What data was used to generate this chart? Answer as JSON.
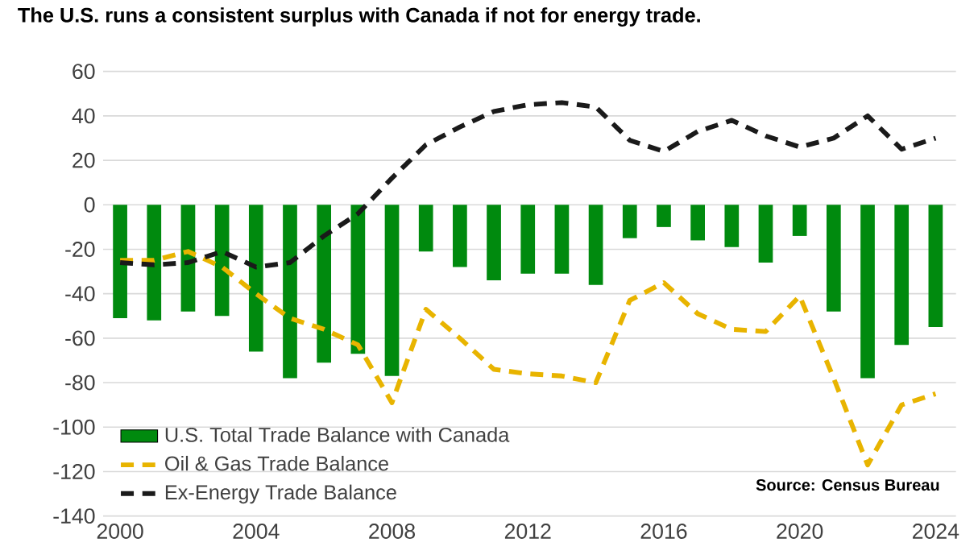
{
  "chart_data": {
    "type": "bar",
    "title": "The U.S. runs a consistent surplus with Canada if not for energy trade.",
    "x": [
      2000,
      2001,
      2002,
      2003,
      2004,
      2005,
      2006,
      2007,
      2008,
      2009,
      2010,
      2011,
      2012,
      2013,
      2014,
      2015,
      2016,
      2017,
      2018,
      2019,
      2020,
      2021,
      2022,
      2023,
      2024
    ],
    "series": [
      {
        "name": "U.S. Total Trade Balance with Canada",
        "color": "#008a0e",
        "values": [
          -51,
          -52,
          -48,
          -50,
          -66,
          -78,
          -71,
          -67,
          -77,
          -21,
          -28,
          -34,
          -31,
          -31,
          -36,
          -15,
          -10,
          -16,
          -19,
          -26,
          -14,
          -48,
          -78,
          -63,
          -55
        ]
      },
      {
        "name": "Oil & Gas Trade Balance",
        "type": "line",
        "line_style": "dashed",
        "color": "#e8b400",
        "values": [
          -25,
          -25,
          -21,
          -28,
          -40,
          -51,
          -56,
          -63,
          -89,
          -47,
          -60,
          -74,
          -76,
          -77,
          -80,
          -43,
          -35,
          -49,
          -56,
          -57,
          -41,
          -78,
          -117,
          -90,
          -85
        ]
      },
      {
        "name": "Ex-Energy Trade Balance",
        "type": "line",
        "line_style": "dashed",
        "color": "#1a1a1a",
        "values": [
          -26,
          -27,
          -26,
          -21,
          -28,
          -26,
          -14,
          -4,
          12,
          27,
          35,
          42,
          45,
          46,
          44,
          29,
          24,
          33,
          38,
          31,
          26,
          30,
          40,
          25,
          30
        ]
      }
    ],
    "xlim": [
      1999.5,
      2024.6
    ],
    "xticks": [
      2000,
      2004,
      2008,
      2012,
      2016,
      2020,
      2024
    ],
    "ylim": [
      -140,
      60
    ],
    "yticks": [
      -140,
      -120,
      -100,
      -80,
      -60,
      -40,
      -20,
      0,
      20,
      40,
      60
    ],
    "grid": "y",
    "legend": "bottom left",
    "annotations": [
      "Source: Census Bureau"
    ]
  }
}
